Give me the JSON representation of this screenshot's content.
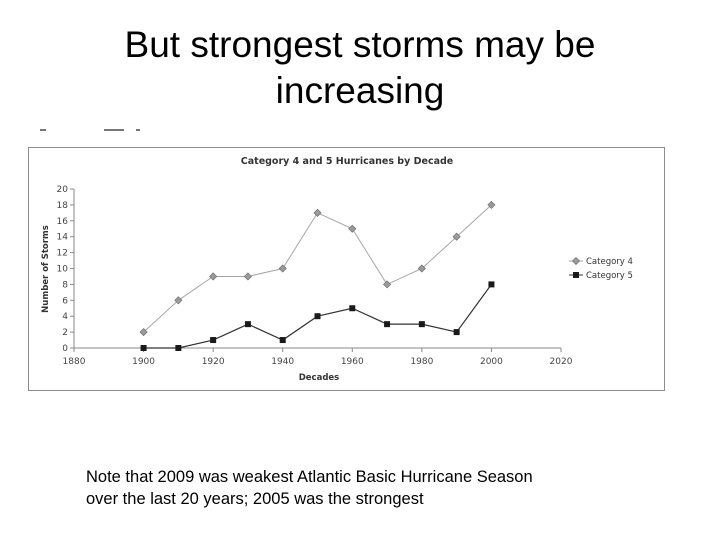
{
  "slide": {
    "title_line1": "But strongest storms may be",
    "title_line2": "increasing",
    "note_line1": "Note that 2009 was weakest Atlantic Basic Hurricane Season",
    "note_line2": "over the last 20 years; 2005 was the strongest"
  },
  "chart_data": {
    "type": "line",
    "title": "Category 4 and 5 Hurricanes by Decade",
    "xlabel": "Decades",
    "ylabel": "Number of Storms",
    "xlim": [
      1880,
      2020
    ],
    "ylim": [
      0,
      20
    ],
    "xticks": [
      1880,
      1900,
      1920,
      1940,
      1960,
      1980,
      2000,
      2020
    ],
    "yticks": [
      0,
      2,
      4,
      6,
      8,
      10,
      12,
      14,
      16,
      18,
      20
    ],
    "x": [
      1900,
      1910,
      1920,
      1930,
      1940,
      1950,
      1960,
      1970,
      1980,
      1990,
      2000
    ],
    "series": [
      {
        "name": "Category 4",
        "marker": "diamond",
        "color": "#9a9a9a",
        "values": [
          2,
          6,
          9,
          9,
          10,
          17,
          15,
          8,
          10,
          14,
          18
        ]
      },
      {
        "name": "Category 5",
        "marker": "square",
        "color": "#1a1a1a",
        "values": [
          0,
          0,
          1,
          3,
          1,
          4,
          5,
          3,
          3,
          2,
          8
        ]
      }
    ],
    "legend": "right",
    "grid": false
  }
}
